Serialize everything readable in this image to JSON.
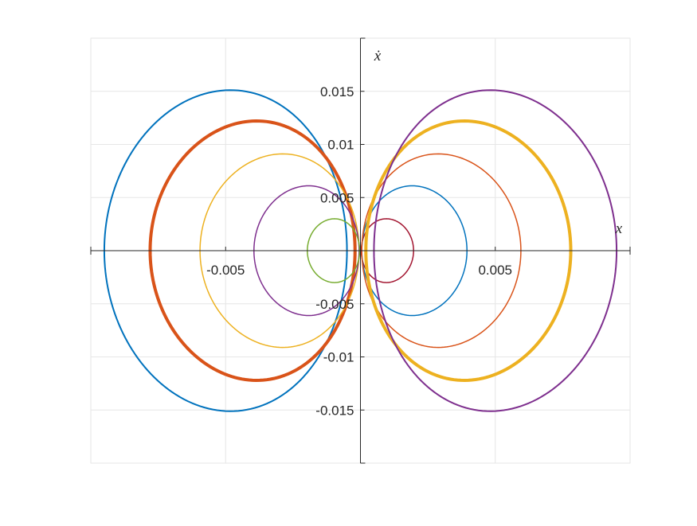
{
  "chart_data": {
    "type": "line",
    "title": "",
    "xlabel": "x",
    "ylabel": "ẋ",
    "xlim": [
      -0.01,
      0.01
    ],
    "ylim": [
      -0.02,
      0.02
    ],
    "xticks": [
      -0.005,
      0.005
    ],
    "xtick_labels": [
      "-0.005",
      "0.005"
    ],
    "yticks": [
      -0.015,
      -0.01,
      -0.005,
      0.005,
      0.01,
      0.015
    ],
    "ytick_labels": [
      "-0.015",
      "-0.01",
      "-0.005",
      "0.005",
      "0.01",
      "0.015"
    ],
    "grid": true,
    "legend": "none",
    "series": [
      {
        "side": "left",
        "center_x": -0.005,
        "amplitude_x": 0.0045,
        "amplitude_v": 0.0151,
        "color": "#0072BD",
        "width": 2.0
      },
      {
        "side": "left",
        "center_x": -0.004,
        "amplitude_x": 0.0038,
        "amplitude_v": 0.0122,
        "color": "#D95319",
        "width": 4.0
      },
      {
        "side": "left",
        "center_x": -0.003,
        "amplitude_x": 0.00295,
        "amplitude_v": 0.0091,
        "color": "#EDB120",
        "width": 1.5
      },
      {
        "side": "left",
        "center_x": -0.002,
        "amplitude_x": 0.00195,
        "amplitude_v": 0.0061,
        "color": "#7E2F8E",
        "width": 1.5
      },
      {
        "side": "left",
        "center_x": -0.001,
        "amplitude_x": 0.00097,
        "amplitude_v": 0.003,
        "color": "#77AC30",
        "width": 1.5
      },
      {
        "side": "right",
        "center_x": 0.001,
        "amplitude_x": 0.00097,
        "amplitude_v": 0.003,
        "color": "#A2142F",
        "width": 1.5
      },
      {
        "side": "right",
        "center_x": 0.002,
        "amplitude_x": 0.00195,
        "amplitude_v": 0.0061,
        "color": "#0072BD",
        "width": 1.5
      },
      {
        "side": "right",
        "center_x": 0.003,
        "amplitude_x": 0.00295,
        "amplitude_v": 0.0091,
        "color": "#D95319",
        "width": 1.5
      },
      {
        "side": "right",
        "center_x": 0.004,
        "amplitude_x": 0.0038,
        "amplitude_v": 0.0122,
        "color": "#EDB120",
        "width": 4.0
      },
      {
        "side": "right",
        "center_x": 0.005,
        "amplitude_x": 0.0045,
        "amplitude_v": 0.0151,
        "color": "#7E2F8E",
        "width": 2.0
      }
    ],
    "colors": {
      "grid": "#e6e6e6",
      "axis": "#262626",
      "frame": "#e6e6e6"
    }
  }
}
